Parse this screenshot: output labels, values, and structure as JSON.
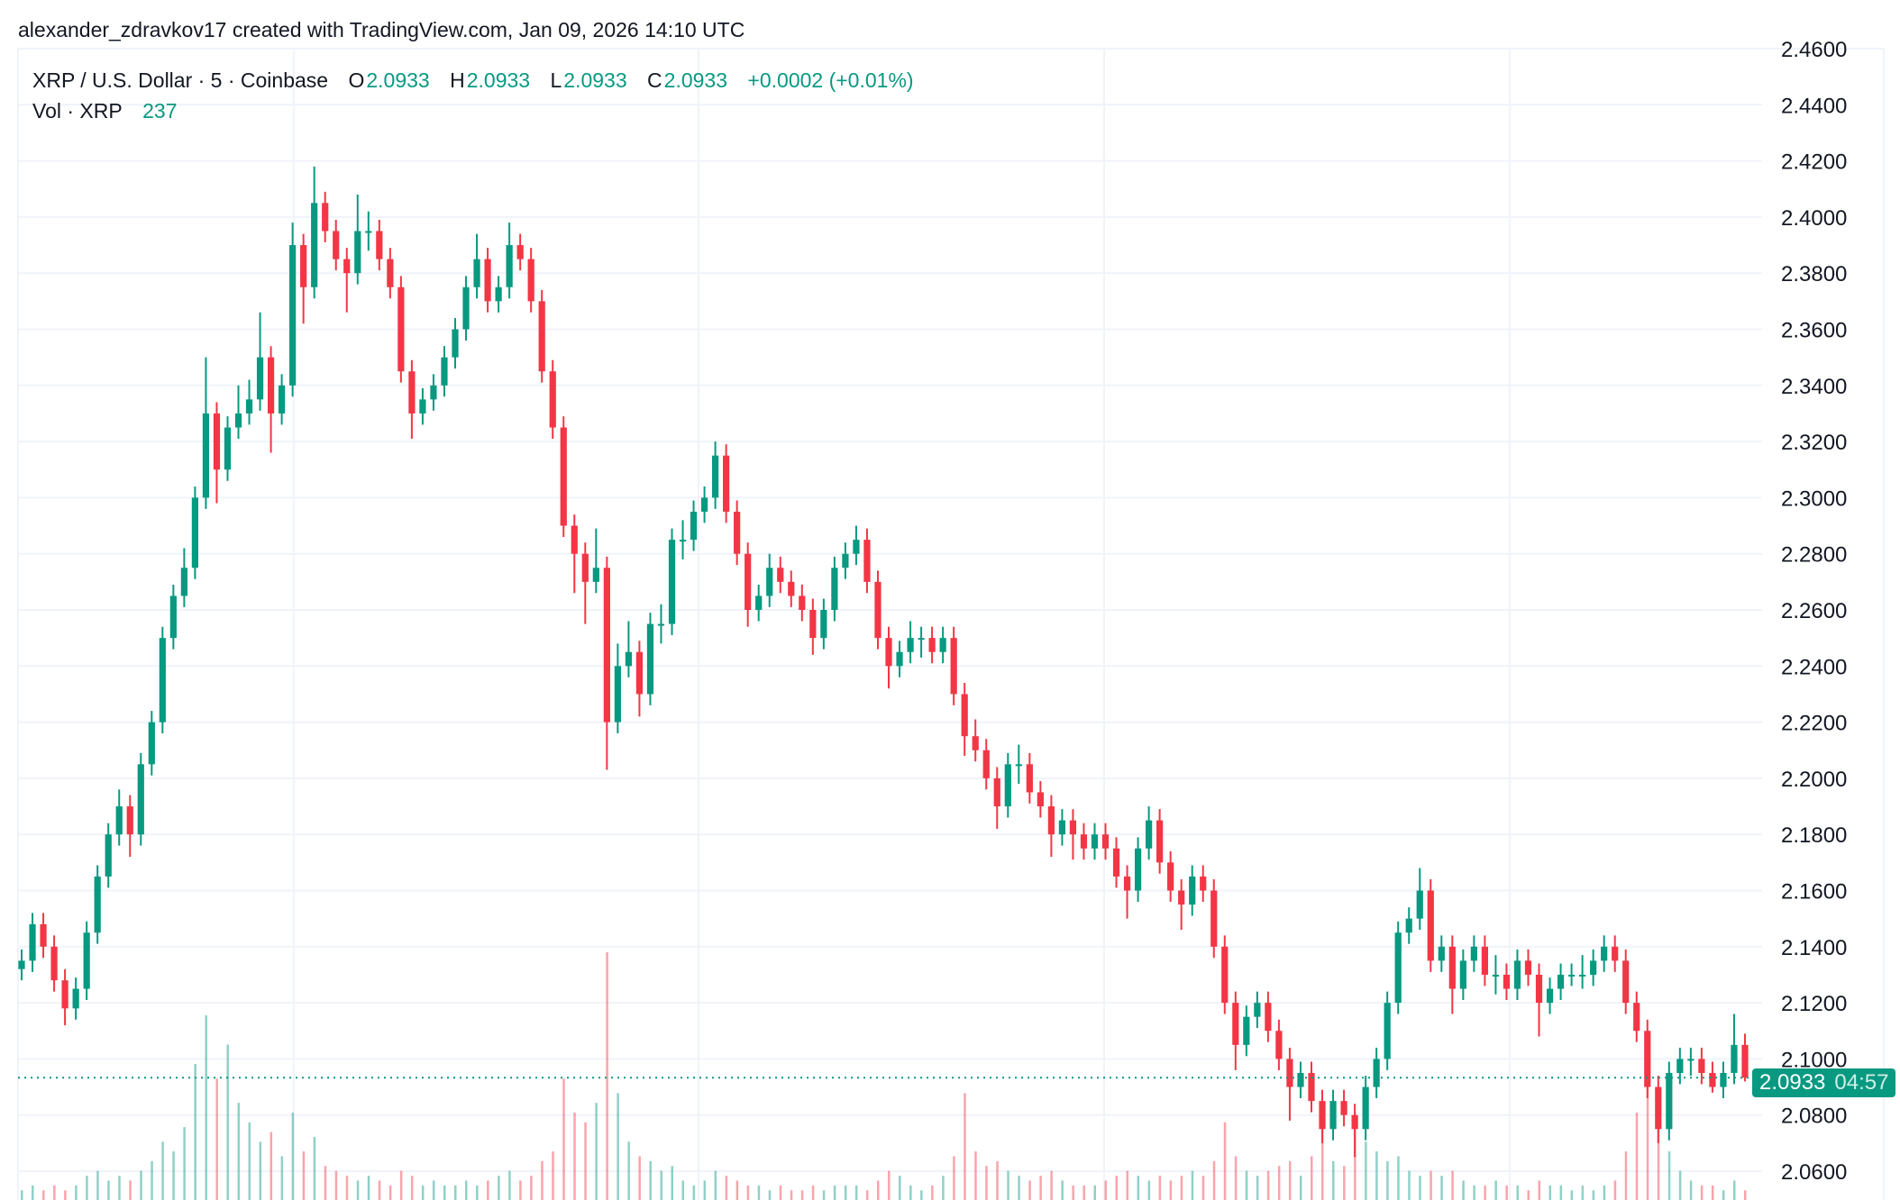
{
  "credit": "alexander_zdravkov17 created with TradingView.com, Jan 09, 2026 14:10 UTC",
  "legend": {
    "symbol": "XRP / U.S. Dollar · 5 · Coinbase",
    "o_label": "O",
    "o": "2.0933",
    "h_label": "H",
    "h": "2.0933",
    "l_label": "L",
    "l": "2.0933",
    "c_label": "C",
    "c": "2.0933",
    "change": "+0.0002 (+0.01%)",
    "vol_label": "Vol · XRP",
    "vol": "237"
  },
  "price_label": {
    "price": "2.0933",
    "countdown": "04:57"
  },
  "colors": {
    "up": "#089981",
    "down": "#f23645",
    "grid": "#f0f3fa"
  },
  "chart_data": {
    "type": "candlestick",
    "title": "",
    "ylim": [
      2.05,
      2.46
    ],
    "grid": true,
    "y_ticks": [
      "2.4600",
      "2.4400",
      "2.4200",
      "2.4000",
      "2.3800",
      "2.3600",
      "2.3400",
      "2.3200",
      "2.3000",
      "2.2800",
      "2.2600",
      "2.2400",
      "2.2200",
      "2.2000",
      "2.1800",
      "2.1600",
      "2.1400",
      "2.1200",
      "2.1000",
      "2.0800",
      "2.0600"
    ],
    "last_price": 2.0933,
    "ohlc": [
      [
        2.132,
        2.139,
        2.128,
        2.135
      ],
      [
        2.135,
        2.152,
        2.131,
        2.148
      ],
      [
        2.148,
        2.152,
        2.136,
        2.14
      ],
      [
        2.14,
        2.144,
        2.124,
        2.128
      ],
      [
        2.128,
        2.132,
        2.112,
        2.118
      ],
      [
        2.118,
        2.129,
        2.114,
        2.125
      ],
      [
        2.125,
        2.149,
        2.121,
        2.145
      ],
      [
        2.145,
        2.169,
        2.141,
        2.165
      ],
      [
        2.165,
        2.184,
        2.161,
        2.18
      ],
      [
        2.18,
        2.196,
        2.176,
        2.19
      ],
      [
        2.19,
        2.194,
        2.172,
        2.18
      ],
      [
        2.18,
        2.209,
        2.176,
        2.205
      ],
      [
        2.205,
        2.224,
        2.201,
        2.22
      ],
      [
        2.22,
        2.254,
        2.216,
        2.25
      ],
      [
        2.25,
        2.269,
        2.246,
        2.265
      ],
      [
        2.265,
        2.282,
        2.261,
        2.275
      ],
      [
        2.275,
        2.304,
        2.271,
        2.3
      ],
      [
        2.3,
        2.35,
        2.296,
        2.33
      ],
      [
        2.33,
        2.334,
        2.298,
        2.31
      ],
      [
        2.31,
        2.329,
        2.306,
        2.325
      ],
      [
        2.325,
        2.34,
        2.321,
        2.33
      ],
      [
        2.33,
        2.342,
        2.326,
        2.335
      ],
      [
        2.335,
        2.366,
        2.331,
        2.35
      ],
      [
        2.35,
        2.354,
        2.316,
        2.33
      ],
      [
        2.33,
        2.344,
        2.326,
        2.34
      ],
      [
        2.34,
        2.398,
        2.336,
        2.39
      ],
      [
        2.39,
        2.394,
        2.362,
        2.375
      ],
      [
        2.375,
        2.418,
        2.371,
        2.405
      ],
      [
        2.405,
        2.409,
        2.391,
        2.395
      ],
      [
        2.395,
        2.399,
        2.381,
        2.385
      ],
      [
        2.385,
        2.389,
        2.366,
        2.38
      ],
      [
        2.38,
        2.408,
        2.376,
        2.395
      ],
      [
        2.395,
        2.402,
        2.388,
        2.395
      ],
      [
        2.395,
        2.399,
        2.381,
        2.385
      ],
      [
        2.385,
        2.389,
        2.371,
        2.375
      ],
      [
        2.375,
        2.379,
        2.341,
        2.345
      ],
      [
        2.345,
        2.349,
        2.321,
        2.33
      ],
      [
        2.33,
        2.339,
        2.326,
        2.335
      ],
      [
        2.335,
        2.344,
        2.331,
        2.34
      ],
      [
        2.34,
        2.354,
        2.336,
        2.35
      ],
      [
        2.35,
        2.364,
        2.346,
        2.36
      ],
      [
        2.36,
        2.379,
        2.356,
        2.375
      ],
      [
        2.375,
        2.394,
        2.371,
        2.385
      ],
      [
        2.385,
        2.389,
        2.366,
        2.37
      ],
      [
        2.37,
        2.379,
        2.366,
        2.375
      ],
      [
        2.375,
        2.398,
        2.371,
        2.39
      ],
      [
        2.39,
        2.394,
        2.381,
        2.385
      ],
      [
        2.385,
        2.389,
        2.366,
        2.37
      ],
      [
        2.37,
        2.374,
        2.341,
        2.345
      ],
      [
        2.345,
        2.349,
        2.321,
        2.325
      ],
      [
        2.325,
        2.329,
        2.286,
        2.29
      ],
      [
        2.29,
        2.294,
        2.266,
        2.28
      ],
      [
        2.28,
        2.284,
        2.255,
        2.27
      ],
      [
        2.27,
        2.289,
        2.266,
        2.275
      ],
      [
        2.275,
        2.279,
        2.203,
        2.22
      ],
      [
        2.22,
        2.248,
        2.216,
        2.24
      ],
      [
        2.24,
        2.256,
        2.236,
        2.245
      ],
      [
        2.245,
        2.249,
        2.222,
        2.23
      ],
      [
        2.23,
        2.259,
        2.226,
        2.255
      ],
      [
        2.255,
        2.262,
        2.248,
        2.255
      ],
      [
        2.255,
        2.289,
        2.251,
        2.285
      ],
      [
        2.285,
        2.292,
        2.278,
        2.285
      ],
      [
        2.285,
        2.299,
        2.281,
        2.295
      ],
      [
        2.295,
        2.304,
        2.291,
        2.3
      ],
      [
        2.3,
        2.32,
        2.296,
        2.315
      ],
      [
        2.315,
        2.319,
        2.291,
        2.295
      ],
      [
        2.295,
        2.299,
        2.276,
        2.28
      ],
      [
        2.28,
        2.284,
        2.254,
        2.26
      ],
      [
        2.26,
        2.269,
        2.256,
        2.265
      ],
      [
        2.265,
        2.28,
        2.261,
        2.275
      ],
      [
        2.275,
        2.279,
        2.266,
        2.27
      ],
      [
        2.27,
        2.274,
        2.261,
        2.265
      ],
      [
        2.265,
        2.269,
        2.256,
        2.26
      ],
      [
        2.26,
        2.264,
        2.244,
        2.25
      ],
      [
        2.25,
        2.264,
        2.246,
        2.26
      ],
      [
        2.26,
        2.279,
        2.256,
        2.275
      ],
      [
        2.275,
        2.284,
        2.271,
        2.28
      ],
      [
        2.28,
        2.29,
        2.276,
        2.285
      ],
      [
        2.285,
        2.289,
        2.266,
        2.27
      ],
      [
        2.27,
        2.274,
        2.246,
        2.25
      ],
      [
        2.25,
        2.254,
        2.232,
        2.24
      ],
      [
        2.24,
        2.249,
        2.236,
        2.245
      ],
      [
        2.245,
        2.256,
        2.241,
        2.25
      ],
      [
        2.25,
        2.254,
        2.243,
        2.25
      ],
      [
        2.25,
        2.254,
        2.241,
        2.245
      ],
      [
        2.245,
        2.254,
        2.241,
        2.25
      ],
      [
        2.25,
        2.254,
        2.226,
        2.23
      ],
      [
        2.23,
        2.234,
        2.208,
        2.215
      ],
      [
        2.215,
        2.221,
        2.206,
        2.21
      ],
      [
        2.21,
        2.214,
        2.196,
        2.2
      ],
      [
        2.2,
        2.204,
        2.182,
        2.19
      ],
      [
        2.19,
        2.209,
        2.186,
        2.205
      ],
      [
        2.205,
        2.212,
        2.198,
        2.205
      ],
      [
        2.205,
        2.209,
        2.191,
        2.195
      ],
      [
        2.195,
        2.199,
        2.186,
        2.19
      ],
      [
        2.19,
        2.194,
        2.172,
        2.18
      ],
      [
        2.18,
        2.189,
        2.176,
        2.185
      ],
      [
        2.185,
        2.189,
        2.171,
        2.18
      ],
      [
        2.18,
        2.184,
        2.171,
        2.175
      ],
      [
        2.175,
        2.184,
        2.171,
        2.18
      ],
      [
        2.18,
        2.184,
        2.171,
        2.175
      ],
      [
        2.175,
        2.179,
        2.161,
        2.165
      ],
      [
        2.165,
        2.169,
        2.15,
        2.16
      ],
      [
        2.16,
        2.179,
        2.156,
        2.175
      ],
      [
        2.175,
        2.19,
        2.171,
        2.185
      ],
      [
        2.185,
        2.189,
        2.166,
        2.17
      ],
      [
        2.17,
        2.174,
        2.156,
        2.16
      ],
      [
        2.16,
        2.164,
        2.146,
        2.155
      ],
      [
        2.155,
        2.169,
        2.151,
        2.165
      ],
      [
        2.165,
        2.169,
        2.156,
        2.16
      ],
      [
        2.16,
        2.164,
        2.136,
        2.14
      ],
      [
        2.14,
        2.144,
        2.116,
        2.12
      ],
      [
        2.12,
        2.124,
        2.096,
        2.105
      ],
      [
        2.105,
        2.119,
        2.101,
        2.115
      ],
      [
        2.115,
        2.124,
        2.111,
        2.12
      ],
      [
        2.12,
        2.124,
        2.106,
        2.11
      ],
      [
        2.11,
        2.114,
        2.096,
        2.1
      ],
      [
        2.1,
        2.104,
        2.078,
        2.09
      ],
      [
        2.09,
        2.099,
        2.086,
        2.095
      ],
      [
        2.095,
        2.099,
        2.081,
        2.085
      ],
      [
        2.085,
        2.089,
        2.07,
        2.075
      ],
      [
        2.075,
        2.089,
        2.071,
        2.085
      ],
      [
        2.085,
        2.089,
        2.076,
        2.08
      ],
      [
        2.08,
        2.084,
        2.065,
        2.075
      ],
      [
        2.075,
        2.094,
        2.071,
        2.09
      ],
      [
        2.09,
        2.104,
        2.086,
        2.1
      ],
      [
        2.1,
        2.124,
        2.096,
        2.12
      ],
      [
        2.12,
        2.149,
        2.116,
        2.145
      ],
      [
        2.145,
        2.154,
        2.141,
        2.15
      ],
      [
        2.15,
        2.168,
        2.146,
        2.16
      ],
      [
        2.16,
        2.164,
        2.131,
        2.135
      ],
      [
        2.135,
        2.144,
        2.131,
        2.14
      ],
      [
        2.14,
        2.144,
        2.116,
        2.125
      ],
      [
        2.125,
        2.139,
        2.121,
        2.135
      ],
      [
        2.135,
        2.144,
        2.131,
        2.14
      ],
      [
        2.14,
        2.144,
        2.126,
        2.13
      ],
      [
        2.13,
        2.137,
        2.123,
        2.13
      ],
      [
        2.13,
        2.134,
        2.121,
        2.125
      ],
      [
        2.125,
        2.139,
        2.121,
        2.135
      ],
      [
        2.135,
        2.139,
        2.126,
        2.13
      ],
      [
        2.13,
        2.134,
        2.108,
        2.12
      ],
      [
        2.12,
        2.129,
        2.116,
        2.125
      ],
      [
        2.125,
        2.134,
        2.121,
        2.13
      ],
      [
        2.13,
        2.134,
        2.126,
        2.13
      ],
      [
        2.13,
        2.137,
        2.125,
        2.13
      ],
      [
        2.13,
        2.139,
        2.126,
        2.135
      ],
      [
        2.135,
        2.144,
        2.131,
        2.14
      ],
      [
        2.14,
        2.144,
        2.131,
        2.135
      ],
      [
        2.135,
        2.139,
        2.116,
        2.12
      ],
      [
        2.12,
        2.124,
        2.106,
        2.11
      ],
      [
        2.11,
        2.114,
        2.086,
        2.09
      ],
      [
        2.09,
        2.094,
        2.07,
        2.075
      ],
      [
        2.075,
        2.099,
        2.071,
        2.095
      ],
      [
        2.095,
        2.104,
        2.091,
        2.1
      ],
      [
        2.1,
        2.104,
        2.094,
        2.1
      ],
      [
        2.1,
        2.104,
        2.091,
        2.095
      ],
      [
        2.095,
        2.099,
        2.088,
        2.09
      ],
      [
        2.09,
        2.099,
        2.086,
        2.095
      ],
      [
        2.095,
        2.116,
        2.091,
        2.105
      ],
      [
        2.105,
        2.109,
        2.092,
        2.0933
      ]
    ],
    "volume": [
      0.2,
      0.3,
      0.2,
      0.3,
      0.2,
      0.3,
      0.5,
      0.6,
      0.4,
      0.5,
      0.4,
      0.6,
      0.8,
      1.2,
      1.0,
      1.5,
      2.8,
      3.8,
      2.5,
      3.2,
      2.0,
      1.6,
      1.2,
      1.4,
      0.9,
      1.8,
      1.0,
      1.3,
      0.7,
      0.6,
      0.5,
      0.4,
      0.5,
      0.4,
      0.3,
      0.6,
      0.5,
      0.3,
      0.4,
      0.3,
      0.3,
      0.4,
      0.3,
      0.4,
      0.5,
      0.6,
      0.4,
      0.5,
      0.8,
      1.0,
      2.5,
      1.8,
      1.6,
      2.0,
      5.1,
      2.2,
      1.2,
      0.9,
      0.8,
      0.6,
      0.7,
      0.4,
      0.3,
      0.4,
      0.6,
      0.5,
      0.4,
      0.3,
      0.3,
      0.2,
      0.3,
      0.2,
      0.2,
      0.3,
      0.2,
      0.3,
      0.3,
      0.3,
      0.2,
      0.4,
      0.6,
      0.5,
      0.3,
      0.2,
      0.3,
      0.5,
      0.9,
      2.2,
      1.0,
      0.7,
      0.8,
      0.6,
      0.5,
      0.4,
      0.5,
      0.6,
      0.4,
      0.3,
      0.3,
      0.3,
      0.4,
      0.5,
      0.6,
      0.5,
      0.4,
      0.5,
      0.4,
      0.5,
      0.6,
      0.5,
      0.8,
      1.6,
      0.9,
      0.6,
      0.5,
      0.6,
      0.7,
      0.8,
      0.5,
      0.9,
      1.5,
      0.8,
      0.7,
      1.8,
      1.2,
      1.0,
      0.8,
      0.9,
      0.6,
      0.5,
      0.6,
      0.5,
      0.6,
      0.4,
      0.3,
      0.3,
      0.4,
      0.3,
      0.3,
      0.2,
      0.4,
      0.3,
      0.3,
      0.2,
      0.3,
      0.2,
      0.3,
      0.4,
      1.0,
      1.8,
      2.6,
      2.2,
      1.0,
      0.6,
      0.4,
      0.3,
      0.3,
      0.2,
      0.4,
      0.2
    ]
  }
}
